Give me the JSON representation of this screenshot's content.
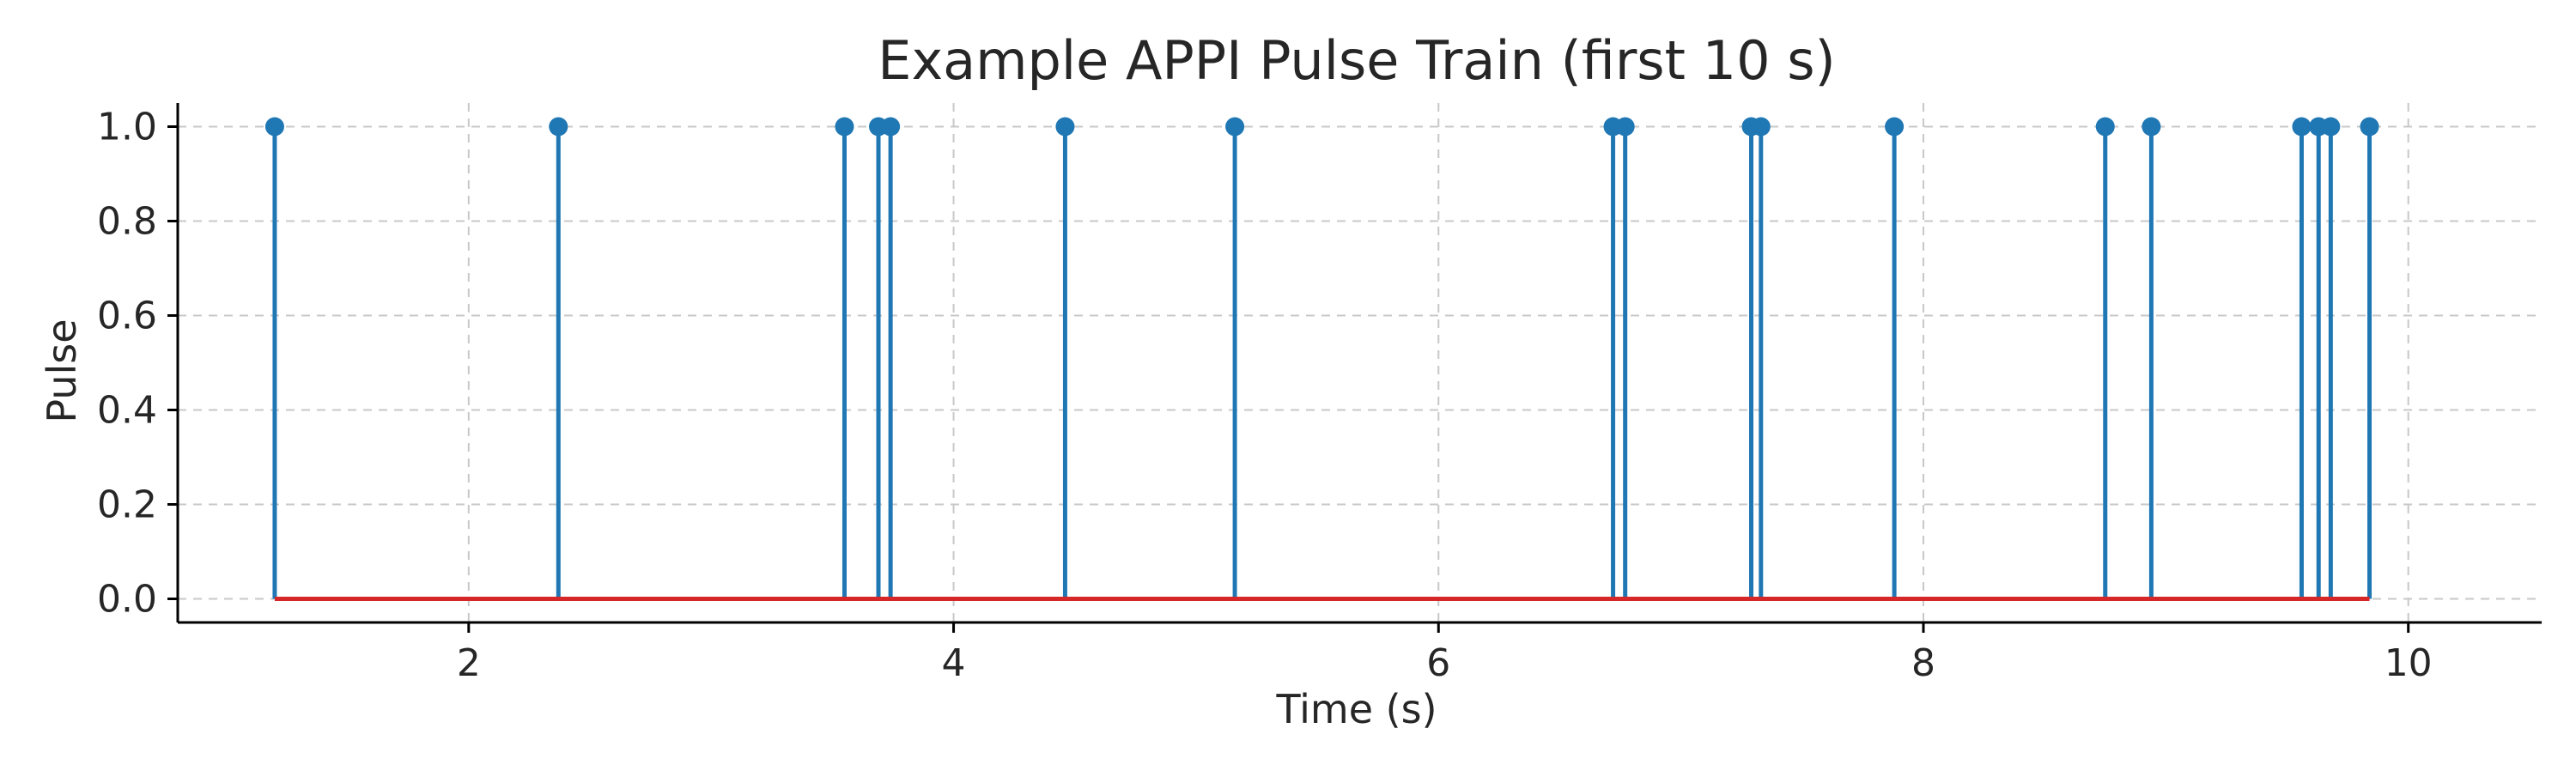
{
  "chart_data": {
    "type": "stem",
    "title": "Example APPI Pulse Train (first 10 s)",
    "xlabel": "Time (s)",
    "ylabel": "Pulse",
    "xlim": [
      0.8,
      10.55
    ],
    "ylim": [
      -0.05,
      1.05
    ],
    "xticks": [
      2,
      4,
      6,
      8,
      10
    ],
    "xtick_labels": [
      "2",
      "4",
      "6",
      "8",
      "10"
    ],
    "yticks": [
      0.0,
      0.2,
      0.4,
      0.6,
      0.8,
      1.0
    ],
    "ytick_labels": [
      "0.0",
      "0.2",
      "0.4",
      "0.6",
      "0.8",
      "1.0"
    ],
    "grid": true,
    "baseline": 0.0,
    "colors": {
      "stems": "#1f77b4",
      "baseline": "#d62728"
    },
    "series": [
      {
        "x": [
          1.2,
          2.37,
          3.55,
          3.69,
          3.74,
          4.46,
          5.16,
          6.72,
          6.77,
          7.29,
          7.33,
          7.88,
          8.75,
          8.94,
          9.56,
          9.63,
          9.68,
          9.84
        ],
        "values": [
          1,
          1,
          1,
          1,
          1,
          1,
          1,
          1,
          1,
          1,
          1,
          1,
          1,
          1,
          1,
          1,
          1,
          1
        ]
      }
    ]
  }
}
